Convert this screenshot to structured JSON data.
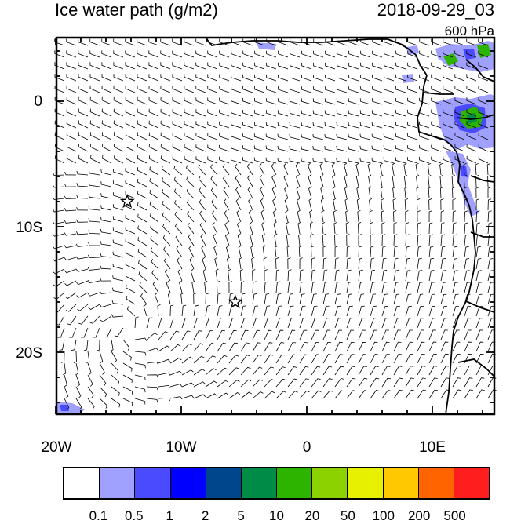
{
  "title": "Ice water path (g/m2)",
  "timestamp": "2018-09-29_03",
  "level": "600 hPa",
  "lat_ticks": [
    "0",
    "10S",
    "20S"
  ],
  "lon_ticks": [
    "20W",
    "10W",
    "0",
    "10E"
  ],
  "colorbar": {
    "colors": [
      "#ffffff",
      "#a0a0ff",
      "#4a4aff",
      "#0000ff",
      "#00468c",
      "#008c46",
      "#2db400",
      "#8cd200",
      "#e6f000",
      "#ffc800",
      "#ff6400",
      "#ff1e1e"
    ],
    "labels": [
      "0.1",
      "0.5",
      "1",
      "2",
      "5",
      "10",
      "20",
      "50",
      "100",
      "200",
      "500"
    ]
  },
  "markers": [
    {
      "name": "star-marker-1",
      "lon": -14.3,
      "lat": -8.0
    },
    {
      "name": "star-marker-2",
      "lon": -5.7,
      "lat": -16.0
    }
  ]
}
